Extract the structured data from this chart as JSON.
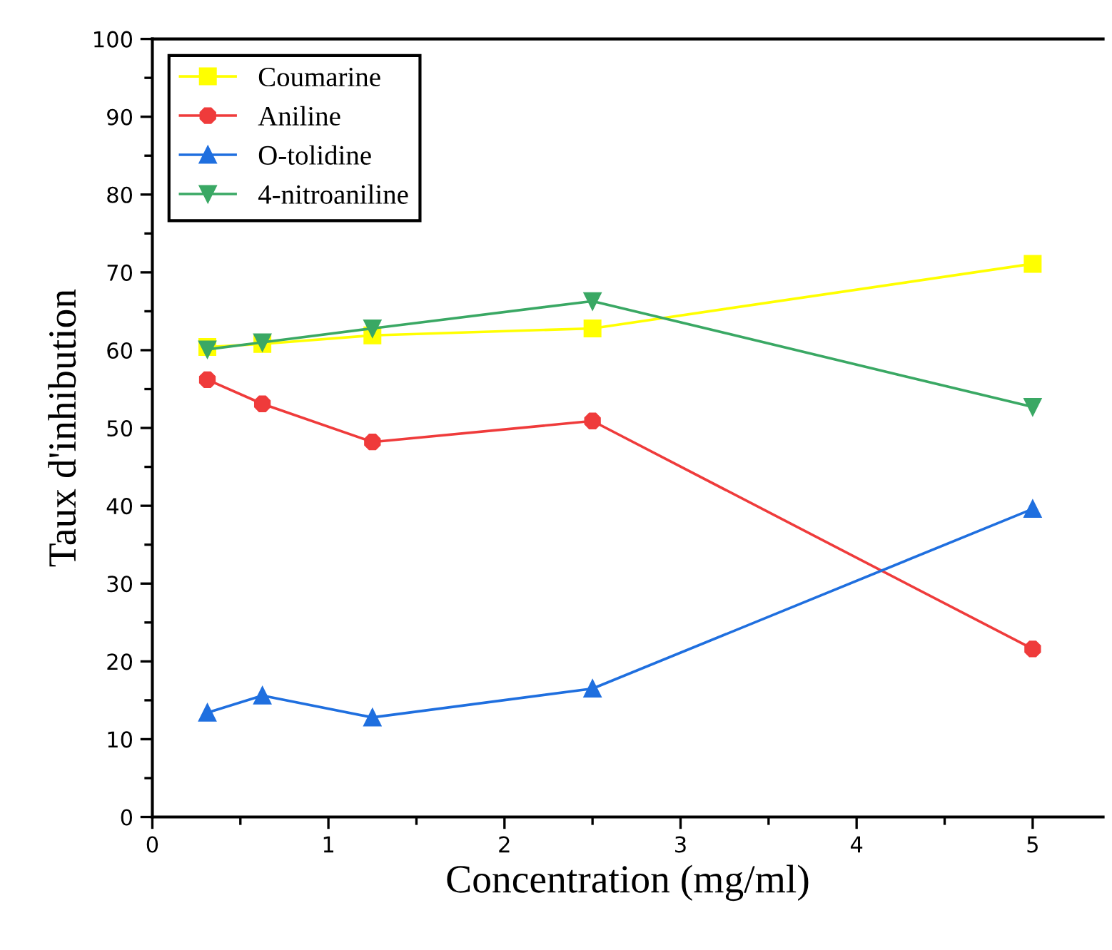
{
  "chart_data": {
    "type": "line",
    "xlabel": "Concentration (mg/ml)",
    "ylabel": "Taux d'inhibution",
    "x": [
      0.3125,
      0.625,
      1.25,
      2.5,
      5
    ],
    "xlim": [
      0,
      5.4
    ],
    "xticks": [
      0,
      1,
      2,
      3,
      4,
      5
    ],
    "ylim": [
      0,
      100
    ],
    "yticks": [
      0,
      10,
      20,
      30,
      40,
      50,
      60,
      70,
      80,
      90,
      100
    ],
    "grid": false,
    "legend": "top left",
    "line_style": "solid",
    "series": [
      {
        "name": "Coumarine",
        "color": "#ffff00",
        "marker": "square",
        "values": [
          60.4,
          60.8,
          61.9,
          62.8,
          71.1
        ]
      },
      {
        "name": "Aniline",
        "color": "#ef3b3b",
        "marker": "circle",
        "values": [
          56.2,
          53.1,
          48.2,
          50.9,
          21.6
        ]
      },
      {
        "name": "O-tolidine",
        "color": "#1f6fdf",
        "marker": "triangle",
        "values": [
          13.4,
          15.6,
          12.8,
          16.5,
          39.6
        ]
      },
      {
        "name": "4-nitroaniline",
        "color": "#3aa864",
        "marker": "triangle_down",
        "values": [
          60.1,
          61.0,
          62.8,
          66.3,
          52.7
        ]
      }
    ]
  }
}
